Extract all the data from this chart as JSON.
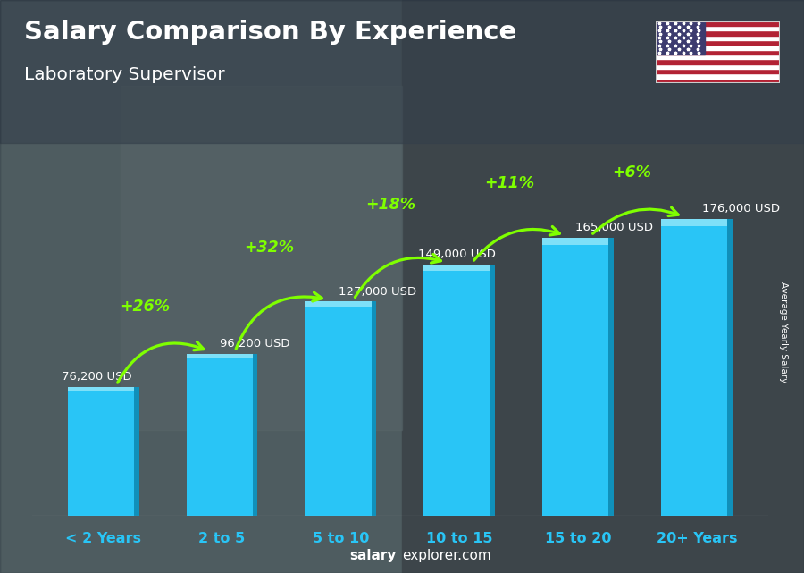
{
  "title": "Salary Comparison By Experience",
  "subtitle": "Laboratory Supervisor",
  "categories": [
    "< 2 Years",
    "2 to 5",
    "5 to 10",
    "10 to 15",
    "15 to 20",
    "20+ Years"
  ],
  "values": [
    76200,
    96200,
    127000,
    149000,
    165000,
    176000
  ],
  "labels": [
    "76,200 USD",
    "96,200 USD",
    "127,000 USD",
    "149,000 USD",
    "165,000 USD",
    "176,000 USD"
  ],
  "pct_changes": [
    "+26%",
    "+32%",
    "+18%",
    "+11%",
    "+6%"
  ],
  "bar_color_main": "#29c5f6",
  "bar_color_right": "#1090ba",
  "bar_color_top": "#7ee0f8",
  "bar_color_top_dark": "#50ccf0",
  "pct_color": "#7fff00",
  "label_color": "#ffffff",
  "bg_color": "#4a5a65",
  "xlabel_color": "#29c5f6",
  "ylabel_text": "Average Yearly Salary",
  "footer_text_bold": "salary",
  "footer_text_normal": "explorer.com",
  "figsize": [
    9.0,
    6.41
  ],
  "dpi": 100,
  "bar_width": 0.6,
  "flag_stripes": [
    "#B22234",
    "white",
    "#B22234",
    "white",
    "#B22234",
    "white",
    "#B22234",
    "white",
    "#B22234",
    "white",
    "#B22234",
    "white",
    "#B22234"
  ],
  "flag_canton": "#3C3B6E"
}
